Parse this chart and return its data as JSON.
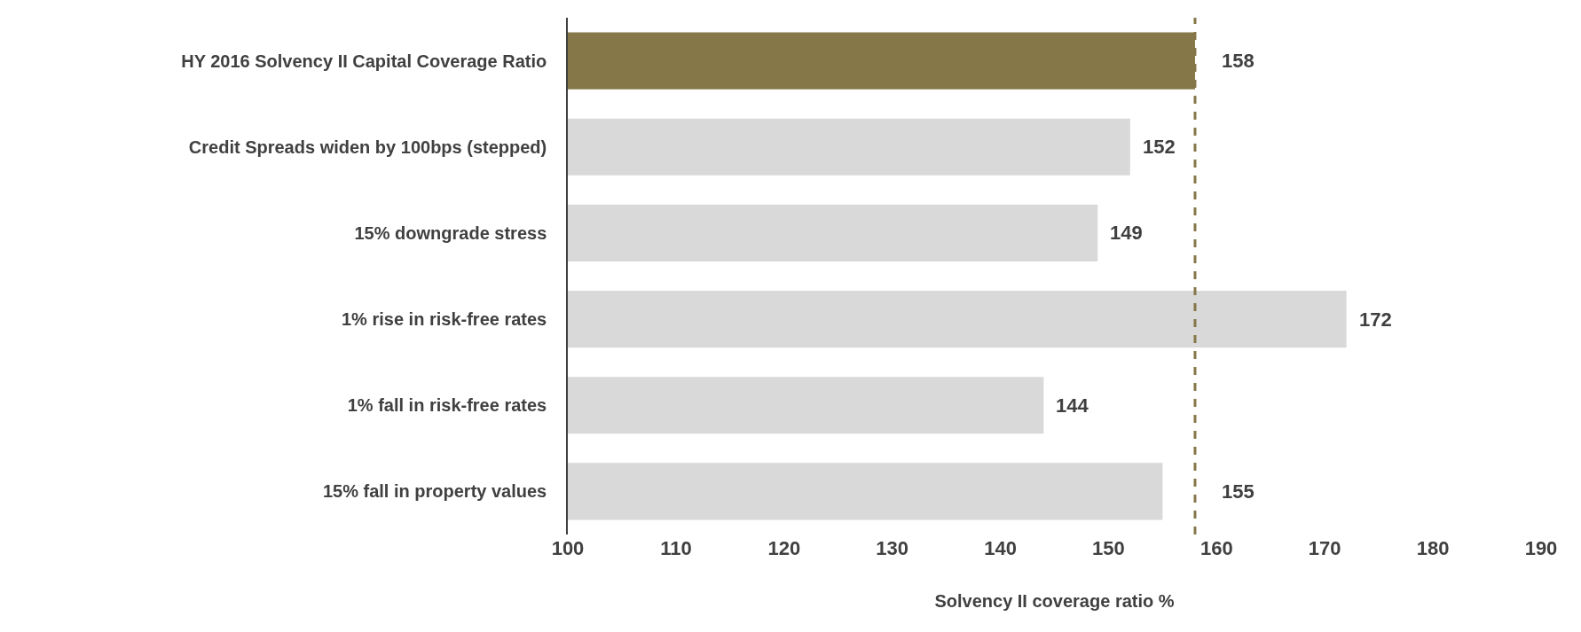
{
  "chart_data": {
    "type": "bar",
    "orientation": "horizontal",
    "xlabel": "Solvency II coverage ratio %",
    "categories": [
      "HY 2016 Solvency II Capital Coverage Ratio",
      "Credit Spreads widen by 100bps (stepped)",
      "15% downgrade stress",
      "1% rise in risk-free rates",
      "1% fall in risk-free rates",
      "15% fall in property values"
    ],
    "values": [
      158,
      152,
      149,
      172,
      144,
      155
    ],
    "colors": [
      "#857748",
      "#d9d9d9",
      "#d9d9d9",
      "#d9d9d9",
      "#d9d9d9",
      "#d9d9d9"
    ],
    "xlim": [
      100,
      190
    ],
    "xticks": [
      100,
      110,
      120,
      130,
      140,
      150,
      160,
      170,
      180,
      190
    ],
    "data_labels": true,
    "grid": false,
    "ref_lines": [
      {
        "axis": "x",
        "value": 158,
        "color": "#857748",
        "line_style": "dashed"
      }
    ]
  }
}
